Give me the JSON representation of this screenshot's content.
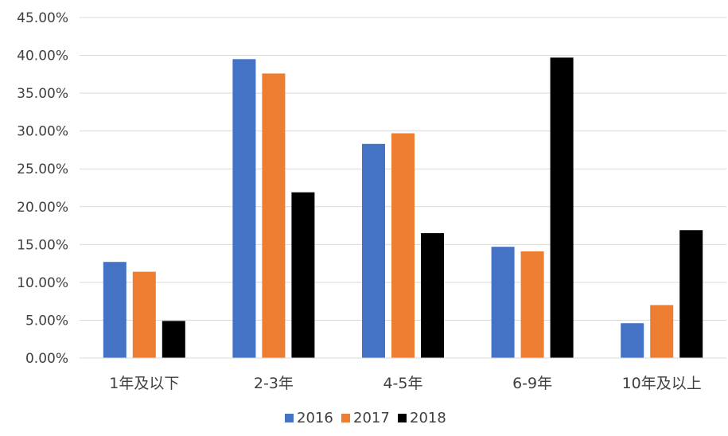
{
  "chart_data": {
    "type": "bar",
    "title": "",
    "xlabel": "",
    "ylabel": "",
    "ylim": [
      0,
      0.45
    ],
    "y_tick_step": 0.05,
    "y_tick_labels": [
      "0.00%",
      "5.00%",
      "10.00%",
      "15.00%",
      "20.00%",
      "25.00%",
      "30.00%",
      "35.00%",
      "40.00%",
      "45.00%"
    ],
    "grid": true,
    "legend_position": "bottom",
    "categories": [
      "1年及以下",
      "2-3年",
      "4-5年",
      "6-9年",
      "10年及以上"
    ],
    "series": [
      {
        "name": "2016",
        "color": "#4472C4",
        "values": [
          0.127,
          0.395,
          0.283,
          0.147,
          0.046
        ]
      },
      {
        "name": "2017",
        "color": "#ED7D31",
        "values": [
          0.114,
          0.376,
          0.297,
          0.141,
          0.07
        ]
      },
      {
        "name": "2018",
        "color": "#000000",
        "values": [
          0.049,
          0.219,
          0.165,
          0.397,
          0.169
        ]
      }
    ]
  }
}
